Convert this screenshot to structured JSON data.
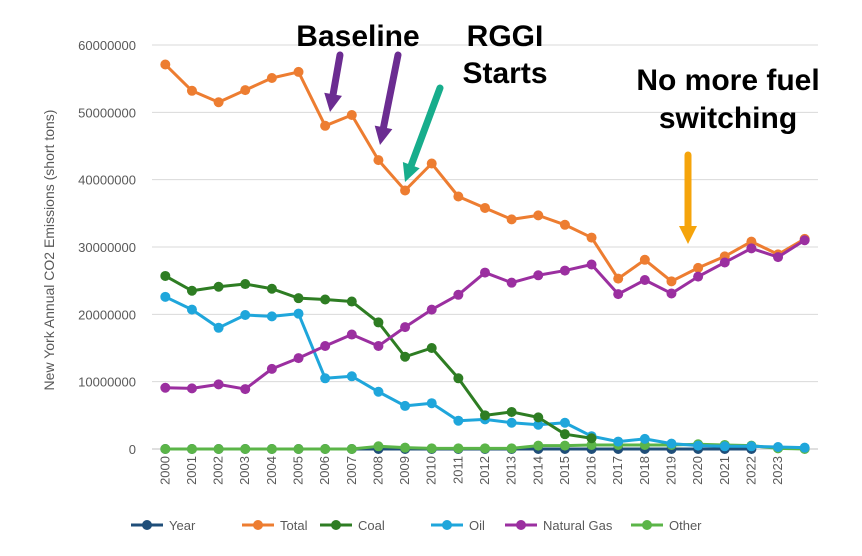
{
  "chart_data": {
    "type": "line",
    "title": "",
    "xlabel": "",
    "ylabel": "New York Annual CO2 Emissions (short tons)",
    "ylim": [
      0,
      60000000
    ],
    "yticks": [
      "0",
      "10000000",
      "20000000",
      "30000000",
      "40000000",
      "50000000",
      "60000000"
    ],
    "categories": [
      "2000",
      "2001",
      "2002",
      "2003",
      "2004",
      "2005",
      "2006",
      "2007",
      "2008",
      "2009",
      "2010",
      "2011",
      "2012",
      "2013",
      "2014",
      "2015",
      "2016",
      "2017",
      "2018",
      "2019",
      "2020",
      "2021",
      "2022",
      "2023",
      ""
    ],
    "grid": true,
    "legend_position": "bottom",
    "series": [
      {
        "name": "Year",
        "color": "#1f4e79",
        "values": [
          2000,
          2001,
          2002,
          2003,
          2004,
          2005,
          2006,
          2007,
          2008,
          2009,
          2010,
          2011,
          2012,
          2013,
          2014,
          2015,
          2016,
          2017,
          2018,
          2019,
          2020,
          2021,
          2022,
          2023,
          null
        ]
      },
      {
        "name": "Total",
        "color": "#ed7d31",
        "values": [
          57100000,
          53200000,
          51500000,
          53300000,
          55100000,
          56000000,
          48000000,
          49600000,
          42900000,
          38400000,
          42400000,
          37500000,
          35800000,
          34100000,
          34700000,
          33300000,
          31400000,
          25300000,
          28100000,
          24900000,
          26900000,
          28600000,
          30800000,
          28900000,
          31200000
        ]
      },
      {
        "name": "Coal",
        "color": "#2e7d23",
        "values": [
          25700000,
          23500000,
          24100000,
          24500000,
          23800000,
          22400000,
          22200000,
          21900000,
          18800000,
          13700000,
          15000000,
          10500000,
          5000000,
          5500000,
          4700000,
          2200000,
          1600000,
          null,
          null,
          null,
          null,
          null,
          null,
          null,
          null
        ]
      },
      {
        "name": "Oil",
        "color": "#1fa6db",
        "values": [
          22600000,
          20700000,
          18000000,
          19900000,
          19700000,
          20100000,
          10500000,
          10800000,
          8500000,
          6400000,
          6800000,
          4200000,
          4400000,
          3900000,
          3600000,
          3900000,
          1900000,
          1100000,
          1500000,
          800000,
          500000,
          400000,
          400000,
          300000,
          200000
        ]
      },
      {
        "name": "Natural Gas",
        "color": "#9b2fa0",
        "values": [
          9100000,
          9000000,
          9600000,
          8900000,
          11900000,
          13500000,
          15300000,
          17000000,
          15300000,
          18100000,
          20700000,
          22900000,
          26200000,
          24700000,
          25800000,
          26500000,
          27400000,
          23000000,
          25100000,
          23100000,
          25600000,
          27700000,
          29800000,
          28500000,
          31000000
        ]
      },
      {
        "name": "Other",
        "color": "#5bb548",
        "values": [
          0,
          0,
          0,
          0,
          0,
          0,
          0,
          0,
          400000,
          200000,
          100000,
          100000,
          100000,
          100000,
          500000,
          500000,
          600000,
          600000,
          600000,
          600000,
          700000,
          600000,
          500000,
          100000,
          0
        ]
      }
    ],
    "annotations": [
      {
        "text": "Baseline",
        "color": "#6b2c91"
      },
      {
        "text": "RGGI Starts",
        "color": "#17ad8c"
      },
      {
        "text": "No more fuel switching",
        "color": "#f5a40b"
      }
    ]
  }
}
